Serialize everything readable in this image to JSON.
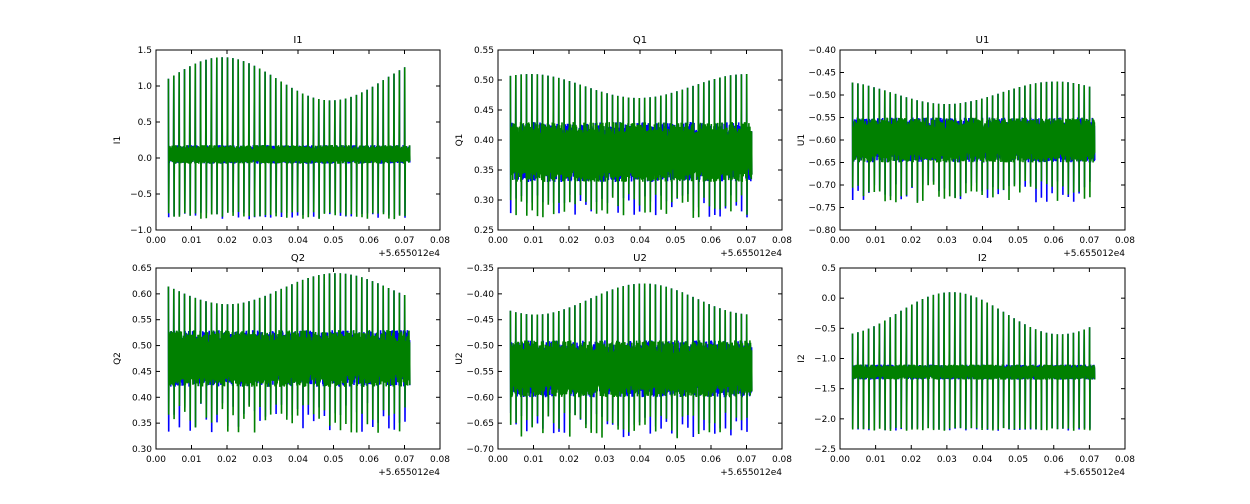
{
  "chart_data": [
    {
      "type": "line",
      "title": "I1",
      "ylabel": "I1",
      "xlim": [
        0.0,
        0.08
      ],
      "ylim": [
        -1.0,
        1.5
      ],
      "x_ticks": [
        "0.00",
        "0.01",
        "0.02",
        "0.03",
        "0.04",
        "0.05",
        "0.06",
        "0.07",
        "0.08"
      ],
      "y_ticks": [
        "−1.0",
        "−0.5",
        "0.0",
        "0.5",
        "1.0",
        "1.5"
      ],
      "offset_text": "+5.655012e4",
      "x_range": [
        0.0035,
        0.0715
      ],
      "band": [
        -0.08,
        0.18
      ],
      "spike_max": [
        0.8,
        1.4
      ],
      "spike_min": [
        -0.85,
        -0.75
      ],
      "series": [
        {
          "color": "#0000ff",
          "values_summary": "same as green; visible at x≈0.068–0.071"
        },
        {
          "color": "#008000",
          "values_summary": "dense oscillation with periodic spikes"
        }
      ]
    },
    {
      "type": "line",
      "title": "Q1",
      "ylabel": "Q1",
      "xlim": [
        0.0,
        0.08
      ],
      "ylim": [
        0.25,
        0.55
      ],
      "x_ticks": [
        "0.00",
        "0.01",
        "0.02",
        "0.03",
        "0.04",
        "0.05",
        "0.06",
        "0.07",
        "0.08"
      ],
      "y_ticks": [
        "0.25",
        "0.30",
        "0.35",
        "0.40",
        "0.45",
        "0.50",
        "0.55"
      ],
      "offset_text": "+5.655012e4",
      "x_range": [
        0.0035,
        0.0715
      ],
      "band": [
        0.33,
        0.43
      ],
      "spike_max": [
        0.47,
        0.51
      ],
      "spike_min": [
        0.27,
        0.31
      ],
      "series": [
        {
          "color": "#0000ff",
          "values_summary": "same as green"
        },
        {
          "color": "#008000",
          "values_summary": "dense oscillation"
        }
      ]
    },
    {
      "type": "line",
      "title": "U1",
      "ylabel": "U1",
      "xlim": [
        0.0,
        0.08
      ],
      "ylim": [
        -0.8,
        -0.4
      ],
      "x_ticks": [
        "0.00",
        "0.01",
        "0.02",
        "0.03",
        "0.04",
        "0.05",
        "0.06",
        "0.07",
        "0.08"
      ],
      "y_ticks": [
        "−0.80",
        "−0.75",
        "−0.70",
        "−0.65",
        "−0.60",
        "−0.55",
        "−0.50",
        "−0.45",
        "−0.40"
      ],
      "offset_text": "+5.655012e4",
      "x_range": [
        0.0035,
        0.0715
      ],
      "band": [
        -0.65,
        -0.55
      ],
      "spike_max": [
        -0.52,
        -0.47
      ],
      "spike_min": [
        -0.74,
        -0.69
      ],
      "series": [
        {
          "color": "#0000ff",
          "values_summary": "same as green"
        },
        {
          "color": "#008000",
          "values_summary": "dense oscillation"
        }
      ]
    },
    {
      "type": "line",
      "title": "Q2",
      "ylabel": "Q2",
      "xlim": [
        0.0,
        0.08
      ],
      "ylim": [
        0.3,
        0.65
      ],
      "x_ticks": [
        "0.00",
        "0.01",
        "0.02",
        "0.03",
        "0.04",
        "0.05",
        "0.06",
        "0.07",
        "0.08"
      ],
      "y_ticks": [
        "0.30",
        "0.35",
        "0.40",
        "0.45",
        "0.50",
        "0.55",
        "0.60",
        "0.65"
      ],
      "offset_text": "+5.655012e4",
      "x_range": [
        0.0035,
        0.0715
      ],
      "band": [
        0.42,
        0.53
      ],
      "spike_max": [
        0.58,
        0.64
      ],
      "spike_min": [
        0.33,
        0.39
      ],
      "series": [
        {
          "color": "#0000ff",
          "values_summary": "same as green"
        },
        {
          "color": "#008000",
          "values_summary": "dense oscillation"
        }
      ]
    },
    {
      "type": "line",
      "title": "U2",
      "ylabel": "U2",
      "xlim": [
        0.0,
        0.08
      ],
      "ylim": [
        -0.7,
        -0.35
      ],
      "x_ticks": [
        "0.00",
        "0.01",
        "0.02",
        "0.03",
        "0.04",
        "0.05",
        "0.06",
        "0.07",
        "0.08"
      ],
      "y_ticks": [
        "−0.70",
        "−0.65",
        "−0.60",
        "−0.55",
        "−0.50",
        "−0.45",
        "−0.40",
        "−0.35"
      ],
      "offset_text": "+5.655012e4",
      "x_range": [
        0.0035,
        0.0715
      ],
      "band": [
        -0.6,
        -0.49
      ],
      "spike_max": [
        -0.44,
        -0.38
      ],
      "spike_min": [
        -0.68,
        -0.63
      ],
      "series": [
        {
          "color": "#0000ff",
          "values_summary": "same as green"
        },
        {
          "color": "#008000",
          "values_summary": "dense oscillation"
        }
      ]
    },
    {
      "type": "line",
      "title": "I2",
      "ylabel": "I2",
      "xlim": [
        0.0,
        0.08
      ],
      "ylim": [
        -2.5,
        0.5
      ],
      "x_ticks": [
        "0.00",
        "0.01",
        "0.02",
        "0.03",
        "0.04",
        "0.05",
        "0.06",
        "0.07",
        "0.08"
      ],
      "y_ticks": [
        "−2.5",
        "−2.0",
        "−1.5",
        "−1.0",
        "−0.5",
        "0.0",
        "0.5"
      ],
      "offset_text": "+5.655012e4",
      "x_range": [
        0.0035,
        0.0715
      ],
      "band": [
        -1.35,
        -1.1
      ],
      "spike_max": [
        -0.6,
        0.1
      ],
      "spike_min": [
        -2.2,
        -2.15
      ],
      "series": [
        {
          "color": "#0000ff",
          "values_summary": "same as green; visible near x≈0.069"
        },
        {
          "color": "#008000",
          "values_summary": "dense oscillation with periodic spikes"
        }
      ]
    }
  ]
}
